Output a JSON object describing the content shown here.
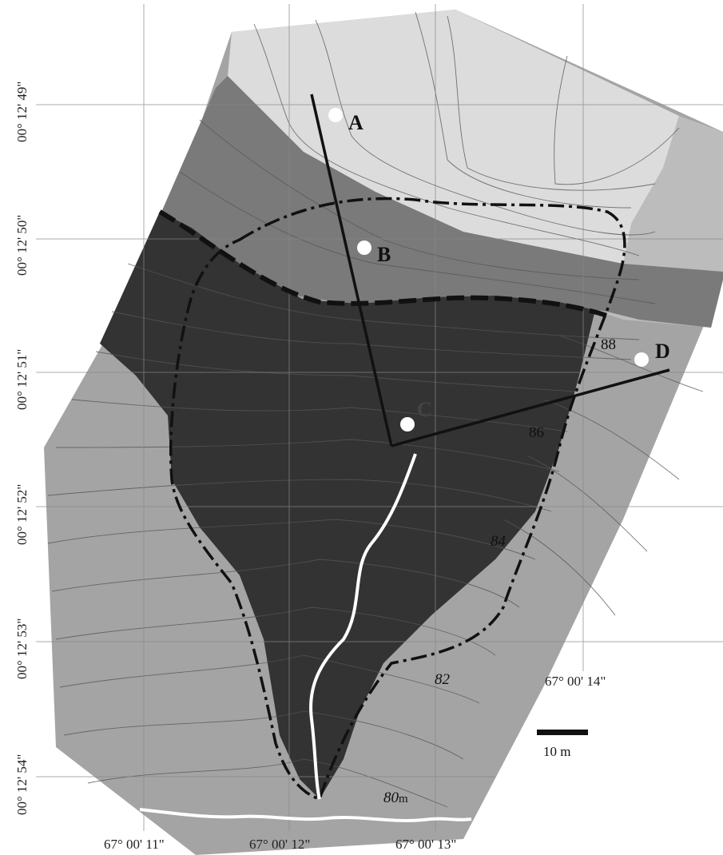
{
  "map": {
    "latitudes": [
      "00° 12' 49\"",
      "00° 12' 50\"",
      "00° 12' 51\"",
      "00° 12' 52\"",
      "00° 12' 53\"",
      "00° 12' 54\""
    ],
    "longitudes": [
      "67° 00' 11\"",
      "67° 00' 12\"",
      "67° 00' 13\""
    ],
    "longitude_extra": "67° 00' 14\"",
    "points": [
      "A",
      "B",
      "C",
      "D"
    ],
    "contour_labels": [
      "88",
      "86",
      "84",
      "82",
      "80"
    ],
    "contour_unit": "m",
    "scale_label": "10 m",
    "colors": {
      "light": "#dcdcdc",
      "mid": "#a4a4a4",
      "gray": "#7a7a7a",
      "dark": "#333333"
    }
  }
}
